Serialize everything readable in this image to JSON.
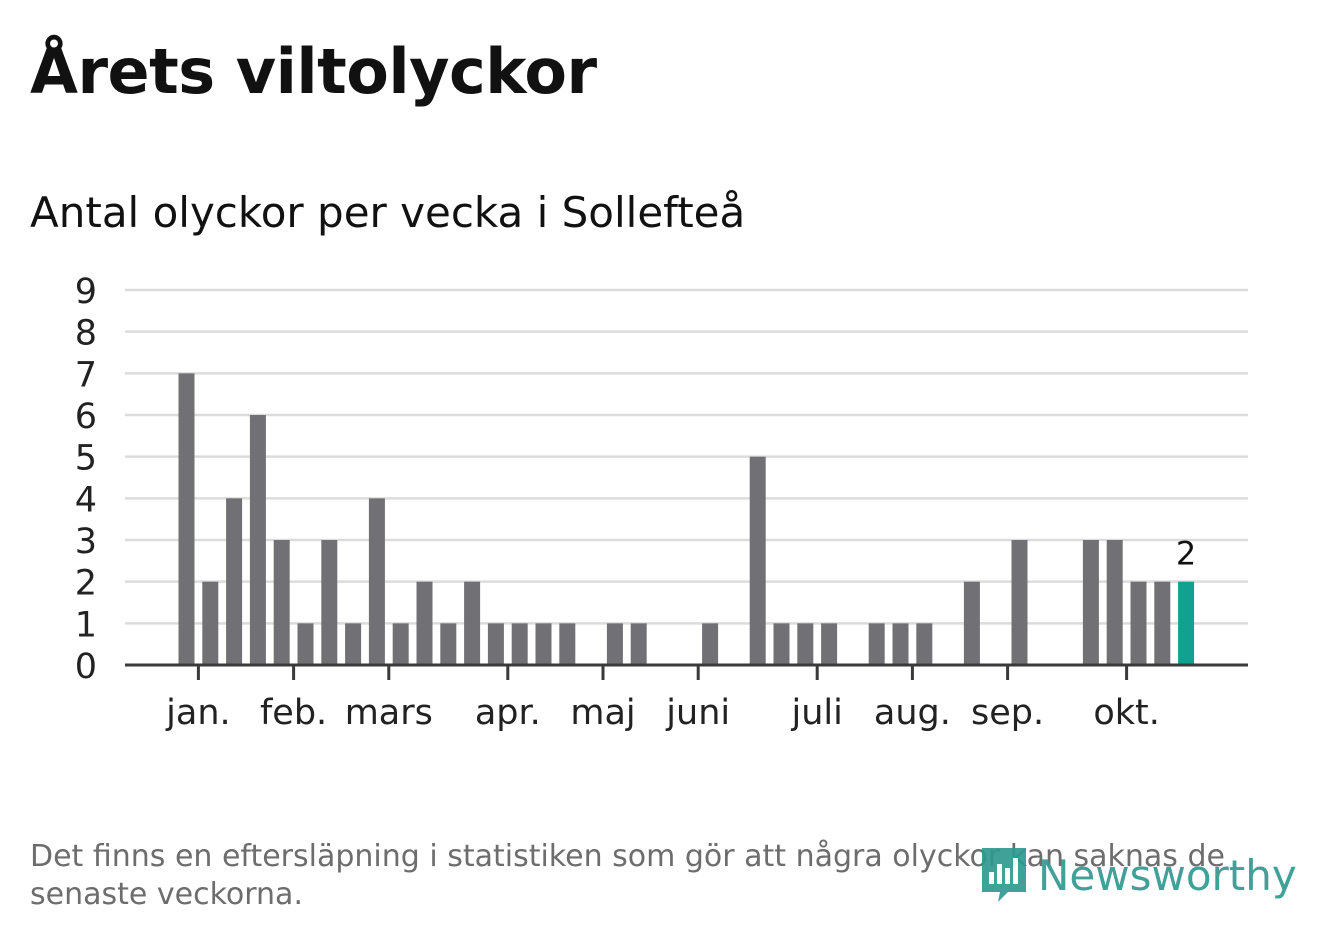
{
  "title": "Årets viltolyckor",
  "subtitle": "Antal olyckor per vecka i Sollefteå",
  "footnote": "Det finns en eftersläpning i statistiken som gör att några olyckor kan saknas de senaste veckorna.",
  "brand": {
    "name": "Newsworthy",
    "icon": "bar-chart-speech-bubble-icon",
    "color": "#2f9a8f"
  },
  "colors": {
    "bar": "#717075",
    "highlight": "#12a091",
    "grid": "#dcdcdc",
    "axis": "#3a3a3a"
  },
  "chart_data": {
    "type": "bar",
    "title": "Antal olyckor per vecka i Sollefteå",
    "xlabel": "",
    "ylabel": "",
    "ylim": [
      0,
      9
    ],
    "yticks": [
      0,
      1,
      2,
      3,
      4,
      5,
      6,
      7,
      8,
      9
    ],
    "weeks": [
      1,
      2,
      3,
      4,
      5,
      6,
      7,
      8,
      9,
      10,
      11,
      12,
      13,
      14,
      15,
      16,
      17,
      18,
      19,
      20,
      21,
      22,
      23,
      24,
      25,
      26,
      27,
      28,
      29,
      30,
      31,
      32,
      33,
      34,
      35,
      36,
      37,
      38,
      39,
      40,
      41,
      42,
      43
    ],
    "values": [
      7,
      2,
      4,
      6,
      3,
      1,
      3,
      1,
      4,
      1,
      2,
      1,
      2,
      1,
      1,
      1,
      1,
      0,
      1,
      1,
      0,
      0,
      1,
      0,
      5,
      1,
      1,
      1,
      0,
      1,
      1,
      1,
      0,
      2,
      0,
      3,
      0,
      0,
      3,
      3,
      2,
      2,
      2
    ],
    "highlight_index": 42,
    "highlight_label": "2",
    "month_ticks": [
      {
        "label": "jan.",
        "week": 1.5
      },
      {
        "label": "feb.",
        "week": 5.5
      },
      {
        "label": "mars",
        "week": 9.5
      },
      {
        "label": "apr.",
        "week": 14.5
      },
      {
        "label": "maj",
        "week": 18.5
      },
      {
        "label": "juni",
        "week": 22.5
      },
      {
        "label": "juli",
        "week": 27.5
      },
      {
        "label": "aug.",
        "week": 31.5
      },
      {
        "label": "sep.",
        "week": 35.5
      },
      {
        "label": "okt.",
        "week": 40.5
      }
    ],
    "grid": true,
    "legend": "none"
  }
}
